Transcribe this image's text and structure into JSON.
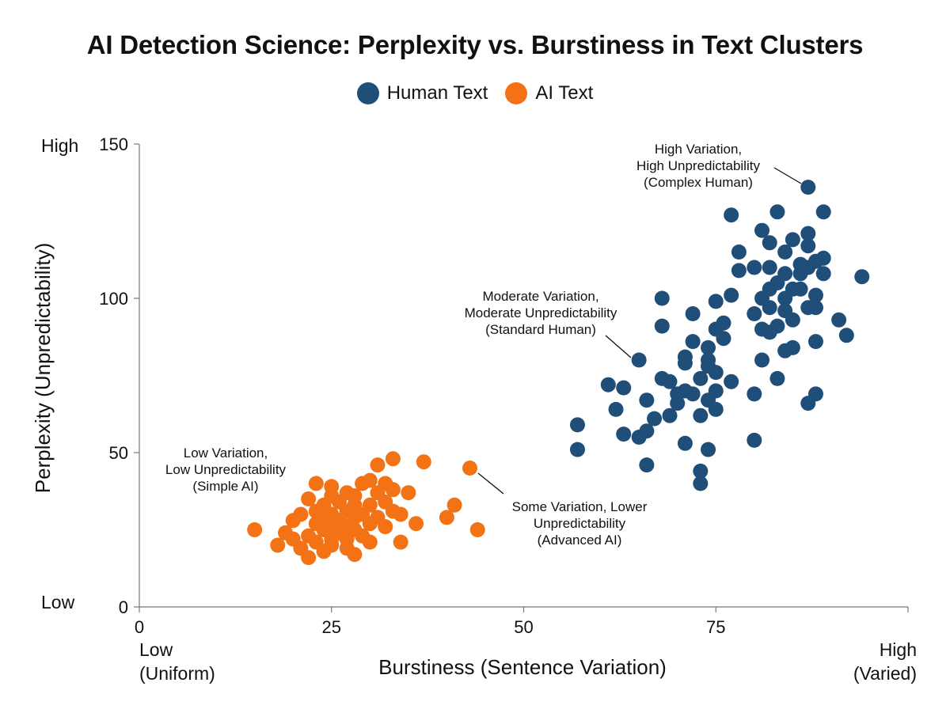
{
  "chart_data": {
    "type": "scatter",
    "title": "AI Detection Science: Perplexity vs. Burstiness in Text Clusters",
    "xlabel": "Burstiness (Sentence Variation)",
    "ylabel": "Perplexity (Unpredictability)",
    "xlim": [
      0,
      100
    ],
    "ylim": [
      0,
      150
    ],
    "xticks": [
      0,
      25,
      50,
      75
    ],
    "yticks": [
      0,
      50,
      100,
      150
    ],
    "x_end_labels": {
      "low": "Low\n(Uniform)",
      "high": "High\n(Varied)"
    },
    "y_end_labels": {
      "low": "Low",
      "high": "High"
    },
    "grid": false,
    "legend_position": "top-center",
    "series": [
      {
        "name": "Human Text",
        "color": "#1f4e79",
        "points": [
          [
            57,
            59
          ],
          [
            57,
            51
          ],
          [
            61,
            72
          ],
          [
            62,
            64
          ],
          [
            63,
            71
          ],
          [
            63,
            56
          ],
          [
            65,
            55
          ],
          [
            65,
            80
          ],
          [
            66,
            57
          ],
          [
            66,
            67
          ],
          [
            66,
            46
          ],
          [
            67,
            61
          ],
          [
            68,
            91
          ],
          [
            68,
            74
          ],
          [
            68,
            100
          ],
          [
            69,
            73
          ],
          [
            69,
            62
          ],
          [
            70,
            66
          ],
          [
            70,
            69
          ],
          [
            71,
            70
          ],
          [
            71,
            81
          ],
          [
            71,
            79
          ],
          [
            71,
            53
          ],
          [
            72,
            69
          ],
          [
            72,
            95
          ],
          [
            72,
            86
          ],
          [
            73,
            74
          ],
          [
            73,
            62
          ],
          [
            73,
            44
          ],
          [
            73,
            40
          ],
          [
            74,
            80
          ],
          [
            74,
            67
          ],
          [
            74,
            78
          ],
          [
            74,
            51
          ],
          [
            74,
            84
          ],
          [
            75,
            76
          ],
          [
            75,
            64
          ],
          [
            75,
            70
          ],
          [
            75,
            90
          ],
          [
            75,
            99
          ],
          [
            76,
            92
          ],
          [
            76,
            87
          ],
          [
            77,
            101
          ],
          [
            77,
            73
          ],
          [
            77,
            127
          ],
          [
            78,
            109
          ],
          [
            78,
            115
          ],
          [
            80,
            69
          ],
          [
            80,
            54
          ],
          [
            80,
            110
          ],
          [
            80,
            95
          ],
          [
            81,
            100
          ],
          [
            81,
            80
          ],
          [
            81,
            122
          ],
          [
            81,
            90
          ],
          [
            82,
            97
          ],
          [
            82,
            103
          ],
          [
            82,
            89
          ],
          [
            82,
            118
          ],
          [
            82,
            110
          ],
          [
            83,
            128
          ],
          [
            83,
            74
          ],
          [
            83,
            91
          ],
          [
            83,
            105
          ],
          [
            84,
            96
          ],
          [
            84,
            115
          ],
          [
            84,
            100
          ],
          [
            84,
            83
          ],
          [
            84,
            108
          ],
          [
            85,
            119
          ],
          [
            85,
            103
          ],
          [
            85,
            93
          ],
          [
            85,
            84
          ],
          [
            86,
            111
          ],
          [
            86,
            103
          ],
          [
            86,
            108
          ],
          [
            87,
            97
          ],
          [
            87,
            136
          ],
          [
            87,
            121
          ],
          [
            87,
            117
          ],
          [
            87,
            110
          ],
          [
            87,
            66
          ],
          [
            88,
            86
          ],
          [
            88,
            112
          ],
          [
            88,
            101
          ],
          [
            88,
            97
          ],
          [
            88,
            69
          ],
          [
            89,
            108
          ],
          [
            89,
            128
          ],
          [
            89,
            113
          ],
          [
            91,
            93
          ],
          [
            92,
            88
          ],
          [
            94,
            107
          ]
        ]
      },
      {
        "name": "AI Text",
        "color": "#f47216",
        "points": [
          [
            15,
            25
          ],
          [
            18,
            20
          ],
          [
            19,
            24
          ],
          [
            20,
            28
          ],
          [
            20,
            22
          ],
          [
            21,
            19
          ],
          [
            21,
            30
          ],
          [
            22,
            35
          ],
          [
            22,
            16
          ],
          [
            22,
            23
          ],
          [
            23,
            40
          ],
          [
            23,
            27
          ],
          [
            23,
            31
          ],
          [
            23,
            21
          ],
          [
            24,
            33
          ],
          [
            24,
            25
          ],
          [
            24,
            29
          ],
          [
            24,
            18
          ],
          [
            25,
            39
          ],
          [
            25,
            36
          ],
          [
            25,
            22
          ],
          [
            25,
            30
          ],
          [
            25,
            26
          ],
          [
            25,
            20
          ],
          [
            26,
            34
          ],
          [
            26,
            28
          ],
          [
            26,
            24
          ],
          [
            27,
            37
          ],
          [
            27,
            31
          ],
          [
            27,
            26
          ],
          [
            27,
            19
          ],
          [
            27,
            22
          ],
          [
            28,
            33
          ],
          [
            28,
            29
          ],
          [
            28,
            36
          ],
          [
            28,
            25
          ],
          [
            28,
            17
          ],
          [
            29,
            40
          ],
          [
            29,
            30
          ],
          [
            29,
            23
          ],
          [
            30,
            41
          ],
          [
            30,
            33
          ],
          [
            30,
            27
          ],
          [
            30,
            21
          ],
          [
            31,
            37
          ],
          [
            31,
            29
          ],
          [
            31,
            46
          ],
          [
            32,
            34
          ],
          [
            32,
            26
          ],
          [
            32,
            40
          ],
          [
            33,
            38
          ],
          [
            33,
            48
          ],
          [
            33,
            31
          ],
          [
            34,
            21
          ],
          [
            34,
            30
          ],
          [
            35,
            37
          ],
          [
            36,
            27
          ],
          [
            37,
            47
          ],
          [
            40,
            29
          ],
          [
            41,
            33
          ],
          [
            43,
            45
          ],
          [
            44,
            25
          ]
        ]
      }
    ],
    "annotations": [
      {
        "lines": [
          "High Variation,",
          "High Unpredictability",
          "(Complex Human)"
        ],
        "points_to": [
          87,
          136
        ]
      },
      {
        "lines": [
          "Moderate Variation,",
          "Moderate Unpredictability",
          "(Standard Human)"
        ],
        "points_to": [
          65,
          80
        ]
      },
      {
        "lines": [
          "Low Variation,",
          "Low Unpredictability",
          "(Simple AI)"
        ]
      },
      {
        "lines": [
          "Some Variation, Lower",
          "Unpredictability",
          "(Advanced AI)"
        ],
        "points_to": [
          43,
          45
        ]
      }
    ]
  }
}
